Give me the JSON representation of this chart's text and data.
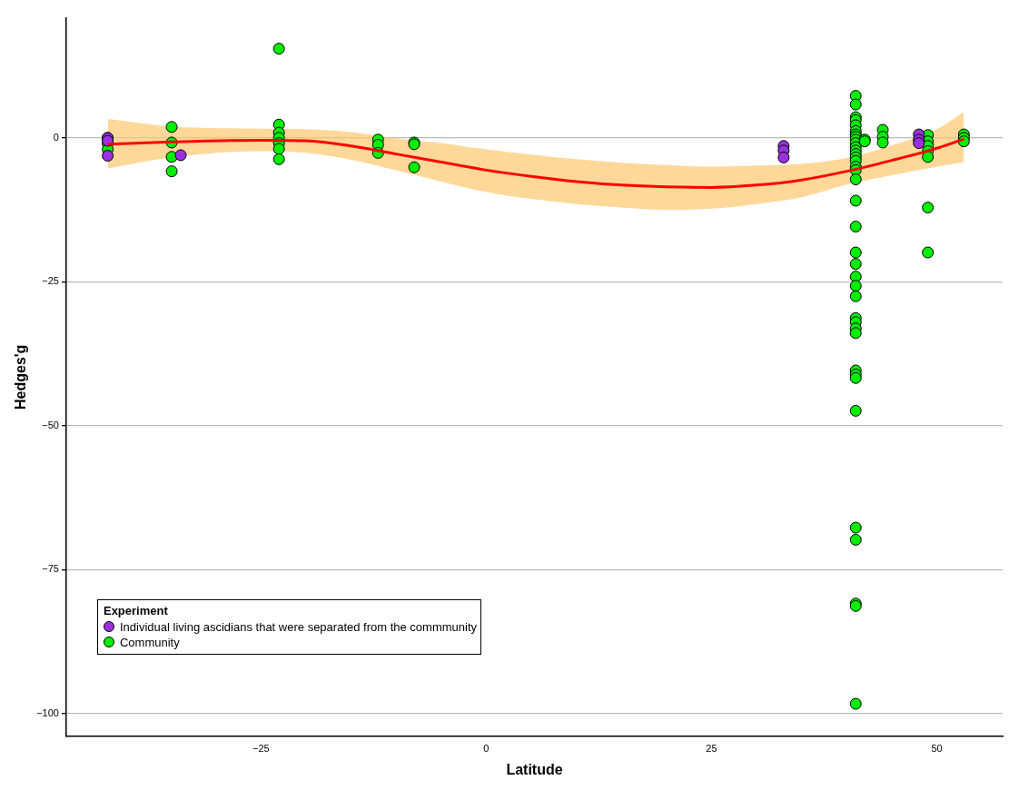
{
  "chart_data": {
    "type": "scatter",
    "xlabel": "Latitude",
    "ylabel": "Hedges'g",
    "legend_title": "Experiment",
    "legend": "bottom left",
    "grid": "y",
    "marker": "circle",
    "xlim": [
      -46.6,
      57.3
    ],
    "ylim": [
      -103.9,
      20.8
    ],
    "xticks": [
      -25,
      0,
      25,
      50
    ],
    "yticks": [
      -100,
      -75,
      -50,
      -25,
      0
    ],
    "series": [
      {
        "name": "Individual living ascidians that were separated from the commmunity",
        "color": "#9b30e0",
        "x": [
          -42,
          -42,
          -42,
          -33.9,
          33,
          33,
          33,
          48,
          48,
          48
        ],
        "values": [
          0,
          -0.5,
          -3.1,
          -3.0,
          -1.4,
          -2.2,
          -3.4,
          0.6,
          -0.3,
          -0.9
        ]
      },
      {
        "name": "Community",
        "color": "#00ee00",
        "x": [
          -42,
          -42,
          -42,
          -34.9,
          -34.9,
          -34.9,
          -34.9,
          -23,
          -23,
          -23,
          -23,
          -23,
          -23,
          -23,
          -12,
          -12,
          -12,
          -8,
          -8,
          -8,
          41,
          41,
          41,
          41,
          41,
          41,
          41,
          41,
          41,
          41,
          41,
          41,
          41,
          41,
          41,
          41,
          41,
          41,
          41,
          41,
          41,
          41,
          41,
          41,
          41,
          41,
          41,
          41,
          41,
          41,
          41,
          41,
          41,
          41,
          41,
          41,
          41,
          41,
          42,
          42,
          44,
          44,
          44,
          49,
          49,
          49,
          49,
          49,
          49,
          49,
          53,
          53,
          53
        ],
        "values": [
          0,
          -1,
          -2,
          1.9,
          -0.8,
          -3.3,
          -5.8,
          15.5,
          2.3,
          0.9,
          0,
          -0.9,
          -1.9,
          -3.7,
          -0.3,
          -1.2,
          -2.6,
          -0.8,
          -1.1,
          -5.1,
          7.3,
          5.8,
          3.6,
          3.1,
          2.2,
          1.2,
          0.6,
          0.2,
          -0.3,
          -0.9,
          -1.6,
          -2.2,
          -2.8,
          -3.4,
          -4.0,
          -5.0,
          -5.6,
          -7.2,
          -10.9,
          -15.4,
          -19.9,
          -21.9,
          -24.1,
          -25.7,
          -27.5,
          -31.3,
          -32.0,
          -33.1,
          -33.9,
          -40.4,
          -41.1,
          -41.7,
          -47.4,
          -67.7,
          -69.8,
          -80.9,
          -81.3,
          -98.3,
          -0.3,
          -0.6,
          1.4,
          0.2,
          -0.8,
          0.5,
          -0.6,
          -1.4,
          -2.3,
          -3.3,
          -12.1,
          -19.9,
          0.6,
          0,
          -0.6
        ]
      },
      {
        "type": "line",
        "color": "#ff0000",
        "marker": "none",
        "x": [
          -42,
          -35,
          -25,
          -20,
          -15,
          -10,
          -5,
          0,
          5,
          10,
          15,
          20,
          25,
          30,
          35,
          40,
          45,
          50,
          53
        ],
        "values": [
          -1.1,
          -0.7,
          -0.4,
          -0.5,
          -1.4,
          -2.8,
          -4.2,
          -5.6,
          -6.7,
          -7.6,
          -8.2,
          -8.5,
          -8.6,
          -8.2,
          -7.3,
          -5.8,
          -3.9,
          -1.8,
          -0.2
        ],
        "lower": [
          -5.3,
          -3.4,
          -2.3,
          -2.6,
          -3.8,
          -5.6,
          -7.6,
          -9.4,
          -10.6,
          -11.5,
          -12.1,
          -12.5,
          -12.3,
          -11.5,
          -10.3,
          -8.1,
          -6.5,
          -5.0,
          -4.2
        ],
        "upper": [
          3.3,
          2.0,
          1.6,
          1.5,
          1.0,
          -0.1,
          -0.9,
          -2.0,
          -2.9,
          -3.7,
          -4.3,
          -4.7,
          -5.0,
          -4.8,
          -4.5,
          -3.5,
          -1.3,
          1.5,
          4.5
        ]
      }
    ]
  }
}
